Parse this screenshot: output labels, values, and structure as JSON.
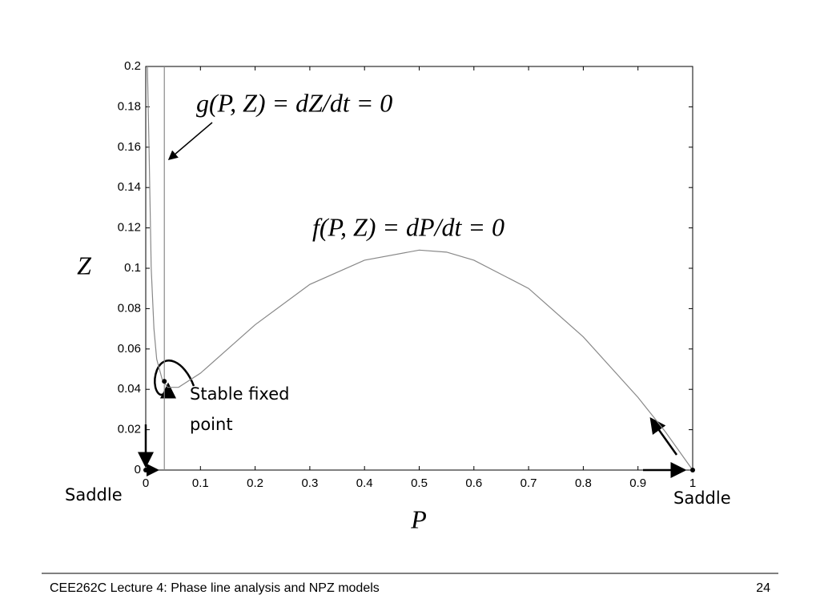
{
  "chart_data": {
    "type": "line",
    "xlabel": "P",
    "ylabel": "Z",
    "xlim": [
      0,
      1
    ],
    "ylim": [
      0,
      0.2
    ],
    "xticks": [
      0,
      0.1,
      0.2,
      0.3,
      0.4,
      0.5,
      0.6,
      0.7,
      0.8,
      0.9,
      1
    ],
    "yticks": [
      0,
      0.02,
      0.04,
      0.06,
      0.08,
      0.1,
      0.12,
      0.14,
      0.16,
      0.18,
      0.2
    ],
    "series": [
      {
        "color": "#888888",
        "x": [
          0.003,
          0.006,
          0.01,
          0.015,
          0.02,
          0.03,
          0.04,
          0.06,
          0.1,
          0.15,
          0.2,
          0.3,
          0.4,
          0.5,
          0.55,
          0.6,
          0.7,
          0.8,
          0.9,
          0.95,
          1
        ],
        "values": [
          0.2,
          0.16,
          0.1,
          0.07,
          0.055,
          0.045,
          0.041,
          0.041,
          0.048,
          0.06,
          0.072,
          0.092,
          0.104,
          0.109,
          0.108,
          0.104,
          0.09,
          0.066,
          0.036,
          0.019,
          0
        ]
      },
      {
        "color": "#888888",
        "x": [
          0.034,
          0.034
        ],
        "values": [
          0,
          0.2
        ]
      }
    ],
    "points": {
      "color": "#000000",
      "x": [
        0,
        1,
        0.034
      ],
      "y": [
        0,
        0,
        0.044
      ]
    },
    "annotations": [
      "g(P, Z) = dZ/dt = 0",
      "f(P, Z) = dP/dt = 0",
      "Stable fixed",
      "point",
      "Saddle",
      "Saddle"
    ]
  },
  "footer": {
    "left": "CEE262C Lecture 4: Phase line analysis and NPZ models",
    "right": "24"
  }
}
